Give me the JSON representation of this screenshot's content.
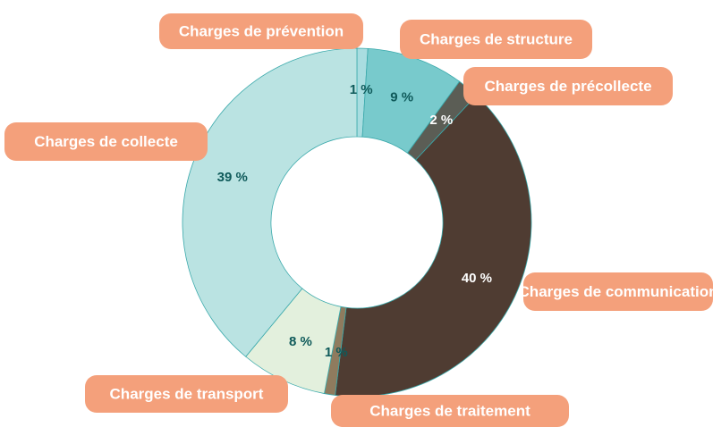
{
  "chart_data": {
    "type": "donut",
    "categories": [
      "Charges de prévention",
      "Charges de structure",
      "Charges de précollecte",
      "Charges de collecte",
      "Charges de communication",
      "Charges de transport",
      "Charges de traitement"
    ],
    "values": [
      1,
      9,
      2,
      40,
      1,
      8,
      39
    ],
    "value_labels": [
      "1 %",
      "9 %",
      "2 %",
      "40 %",
      "1 %",
      "8 %",
      "39 %"
    ],
    "colors": [
      "#a9dde0",
      "#78cacc",
      "#5b5d55",
      "#4f3c32",
      "#8f7b5e",
      "#e3f0dd",
      "#bae3e2"
    ],
    "label_color": "#f4a07b"
  }
}
